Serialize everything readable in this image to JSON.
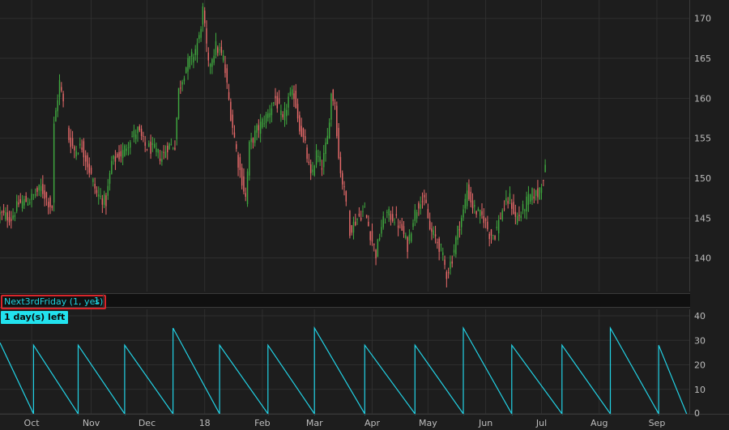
{
  "study": {
    "name": "Next3rdFriday (1, yes)",
    "value": "1",
    "label": "1 day(s) left"
  },
  "colors": {
    "background": "#1d1d1d",
    "up_candle": "#3fa83f",
    "down_candle": "#e86a6a",
    "study_line": "#22d3e6",
    "grid": "#2f2f2f",
    "highlight_border": "#d8262b"
  },
  "chart_data": [
    {
      "type": "candlestick",
      "panel": "price",
      "title": "",
      "ylim": [
        136,
        172
      ],
      "yticks": [
        140,
        145,
        150,
        155,
        160,
        165,
        170
      ],
      "x_tick_labels": [
        "Oct",
        "Nov",
        "Dec",
        "18",
        "Feb",
        "Mar",
        "Apr",
        "May",
        "Jun",
        "Jul",
        "Aug",
        "Sep"
      ],
      "x_tick_days": [
        31,
        63,
        93,
        124,
        155,
        183,
        214,
        244,
        275,
        305,
        336,
        367
      ],
      "x_range_days": [
        14,
        384
      ],
      "grid": true,
      "series": [
        {
          "name": "",
          "anchors_day_close": [
            [
              14,
              145.5
            ],
            [
              20,
              145
            ],
            [
              24,
              146.8
            ],
            [
              30,
              147.3
            ],
            [
              36,
              148.8
            ],
            [
              40,
              147
            ],
            [
              42,
              146.4
            ],
            [
              43,
              156.5
            ],
            [
              46,
              162
            ],
            [
              49,
              158
            ],
            [
              51,
              155
            ],
            [
              54,
              153.5
            ],
            [
              58,
              154
            ],
            [
              62,
              151
            ],
            [
              66,
              148
            ],
            [
              71,
              147
            ],
            [
              74,
              152
            ],
            [
              80,
              153.2
            ],
            [
              84,
              155
            ],
            [
              88,
              156
            ],
            [
              92,
              154
            ],
            [
              97,
              153.5
            ],
            [
              101,
              152.5
            ],
            [
              104,
              154
            ],
            [
              108,
              154.2
            ],
            [
              110,
              161
            ],
            [
              114,
              164
            ],
            [
              118,
              165.5
            ],
            [
              121,
              167.5
            ],
            [
              123,
              171
            ],
            [
              126,
              164
            ],
            [
              130,
              166.5
            ],
            [
              134,
              165
            ],
            [
              138,
              158
            ],
            [
              142,
              152
            ],
            [
              146,
              147.5
            ],
            [
              148,
              154
            ],
            [
              152,
              156
            ],
            [
              158,
              158
            ],
            [
              162,
              160
            ],
            [
              166,
              157
            ],
            [
              169,
              160
            ],
            [
              172,
              160.5
            ],
            [
              175,
              156.5
            ],
            [
              178,
              154
            ],
            [
              181,
              150
            ],
            [
              184,
              153
            ],
            [
              187,
              151.5
            ],
            [
              190,
              155
            ],
            [
              192,
              160.5
            ],
            [
              194,
              159.5
            ],
            [
              196,
              152.5
            ],
            [
              198,
              149.5
            ],
            [
              200,
              147
            ],
            [
              202,
              143.5
            ],
            [
              206,
              145
            ],
            [
              210,
              146
            ],
            [
              213,
              143
            ],
            [
              216,
              140.5
            ],
            [
              219,
              144
            ],
            [
              222,
              145.5
            ],
            [
              226,
              145
            ],
            [
              230,
              143.5
            ],
            [
              233,
              141.5
            ],
            [
              236,
              145
            ],
            [
              240,
              147.5
            ],
            [
              243,
              146.5
            ],
            [
              245,
              143.5
            ],
            [
              248,
              142.5
            ],
            [
              251,
              141
            ],
            [
              254,
              138
            ],
            [
              257,
              140
            ],
            [
              260,
              143.5
            ],
            [
              263,
              145.8
            ],
            [
              265,
              148.5
            ],
            [
              268,
              146.5
            ],
            [
              271,
              145.5
            ],
            [
              274,
              145
            ],
            [
              277,
              143
            ],
            [
              280,
              143
            ],
            [
              284,
              146
            ],
            [
              288,
              147.5
            ],
            [
              291,
              145
            ],
            [
              294,
              145.5
            ],
            [
              297,
              147
            ],
            [
              300,
              148
            ],
            [
              303,
              148
            ],
            [
              305,
              149.5
            ],
            [
              307,
              151
            ]
          ],
          "gaps": [
            [
              42,
              43
            ],
            [
              48,
              51
            ],
            [
              200,
              202
            ]
          ]
        }
      ]
    },
    {
      "type": "line",
      "panel": "study",
      "title": "",
      "ylim": [
        0,
        40
      ],
      "yticks": [
        0,
        10,
        20,
        30,
        40
      ],
      "series": [
        {
          "name": "",
          "x_days": [
            14,
            32,
            32,
            56,
            56,
            81,
            81,
            107,
            107,
            132,
            132,
            158,
            158,
            183,
            183,
            210,
            210,
            237,
            237,
            263,
            263,
            289,
            289,
            316,
            316,
            342,
            342,
            368,
            368,
            383
          ],
          "values": [
            29,
            0,
            28,
            0,
            28,
            0,
            28,
            0,
            35,
            0,
            28,
            0,
            28,
            0,
            35,
            0,
            28,
            0,
            28,
            0,
            35,
            0,
            28,
            0,
            28,
            0,
            35,
            0,
            28,
            0
          ]
        }
      ]
    }
  ]
}
